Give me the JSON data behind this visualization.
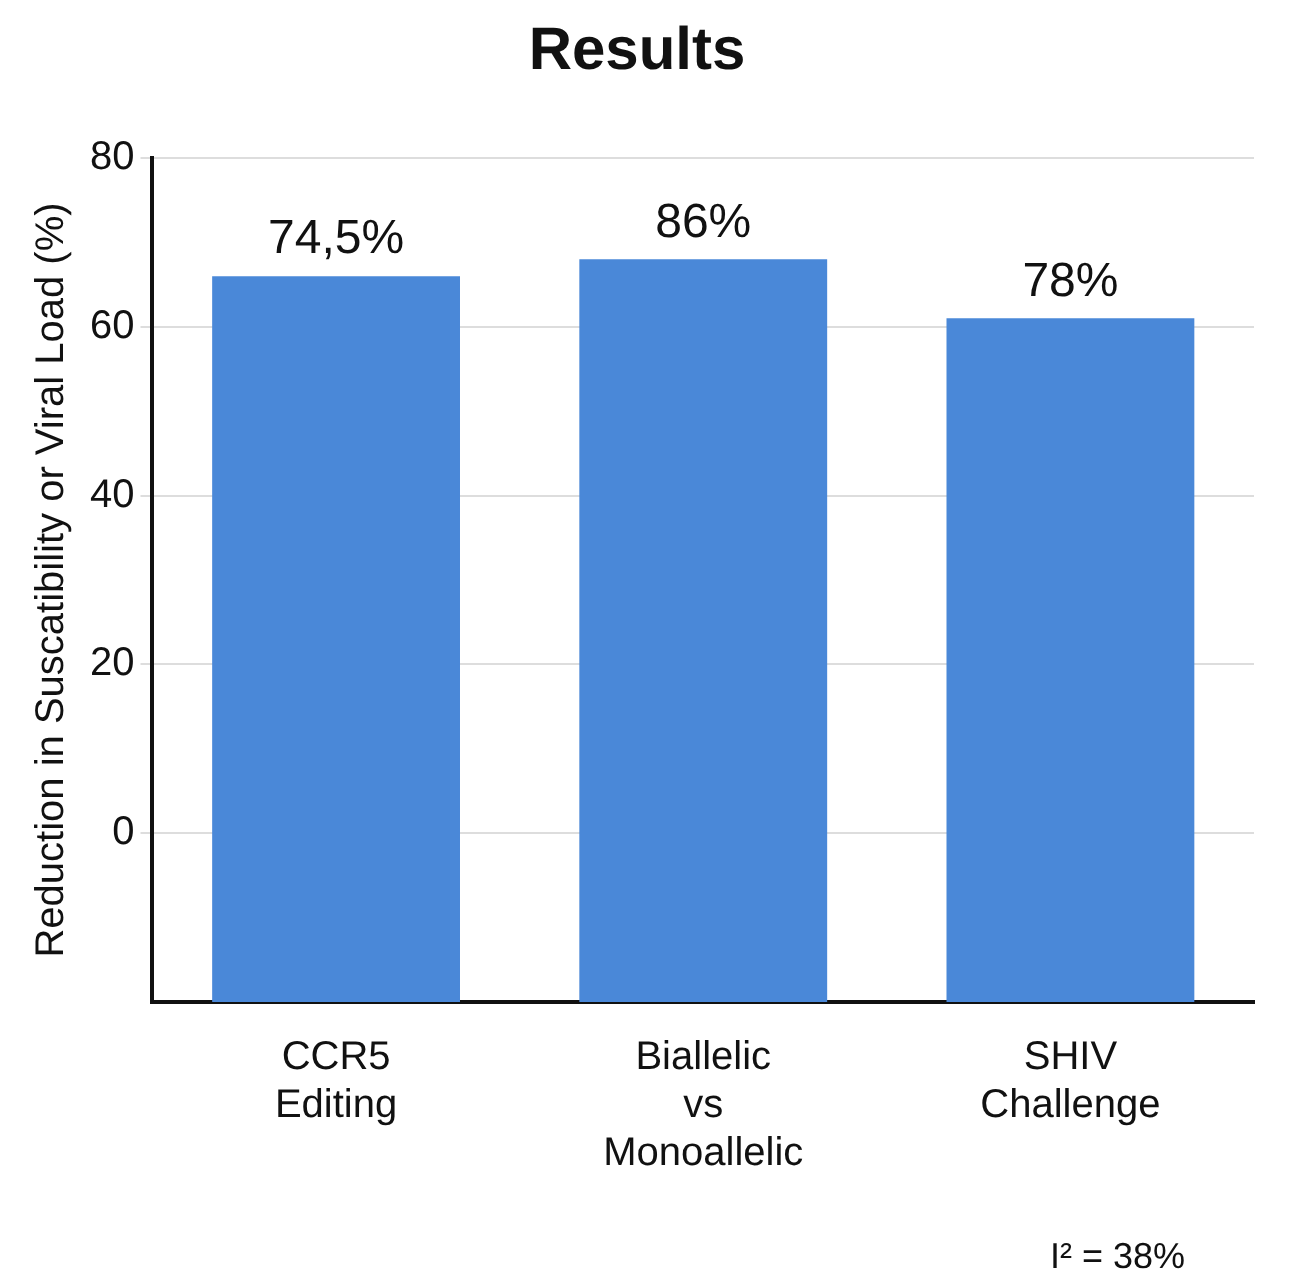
{
  "chart_data": {
    "type": "bar",
    "title": "Results",
    "ylabel": "Reduction in Suscatibility or Viral Load (%)",
    "categories": [
      "CCR5 Editing",
      "Biallelic vs Monoallelic",
      "SHIV Challenge"
    ],
    "values": [
      86,
      88,
      81
    ],
    "base": [
      -20,
      -20,
      -20
    ],
    "color": "#4a88d8",
    "ylim": [
      -20,
      80
    ],
    "yticks": [
      0,
      20,
      40,
      60,
      80
    ],
    "grid": "y",
    "legend": false,
    "annotations": [
      {
        "text": "74,5%",
        "x": "CCR5 Editing",
        "y": 66
      },
      {
        "text": "86%",
        "x": "Biallelic vs Monoallelic",
        "y": 68
      },
      {
        "text": "78%",
        "x": "SHIV Challenge",
        "y": 61
      },
      "I² = 38%"
    ]
  }
}
